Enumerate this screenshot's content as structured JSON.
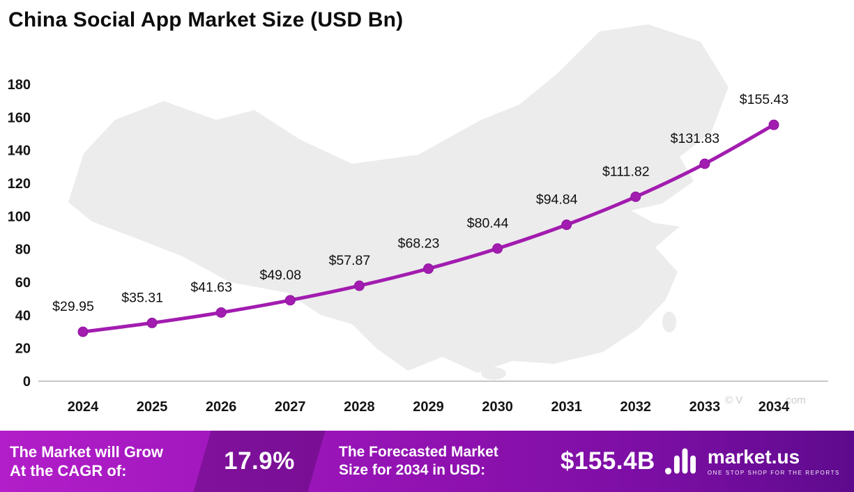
{
  "title": "China Social App Market Size (USD Bn)",
  "watermark": {
    "prefix": "© V",
    "suffix": ".com"
  },
  "colors": {
    "line": "#a21caf",
    "marker": "#a21caf",
    "marker_edge": "#8e15a0",
    "map_fill": "#ececec",
    "axis_line": "#c6c6c6",
    "text": "#101010"
  },
  "chart_data": {
    "type": "line",
    "title": "China Social App Market Size (USD Bn)",
    "categories": [
      "2024",
      "2025",
      "2026",
      "2027",
      "2028",
      "2029",
      "2030",
      "2031",
      "2032",
      "2033",
      "2034"
    ],
    "series": [
      {
        "name": "China Social App Market Size (USD Bn)",
        "values": [
          29.95,
          35.31,
          41.63,
          49.08,
          57.87,
          68.23,
          80.44,
          94.84,
          111.82,
          131.83,
          155.43
        ]
      }
    ],
    "point_labels": [
      "$29.95",
      "$35.31",
      "$41.63",
      "$49.08",
      "$57.87",
      "$68.23",
      "$80.44",
      "$94.84",
      "$111.82",
      "$131.83",
      "$155.43"
    ],
    "xlabel": "",
    "ylabel": "",
    "ylim": [
      0,
      180
    ],
    "y_ticks": [
      0,
      20,
      40,
      60,
      80,
      100,
      120,
      140,
      160,
      180
    ],
    "grid": false,
    "legend": false,
    "line_color": "#a21caf",
    "background": "china-map-silhouette"
  },
  "footer": {
    "cagr_label_line1": "The Market will Grow",
    "cagr_label_line2": "At the CAGR of:",
    "cagr_value": "17.9%",
    "forecast_label_line1": "The Forecasted Market",
    "forecast_label_line2": "Size for 2034 in USD:",
    "forecast_value": "$155.4B",
    "brand": "market.us",
    "brand_tagline": "ONE STOP SHOP FOR THE REPORTS"
  }
}
